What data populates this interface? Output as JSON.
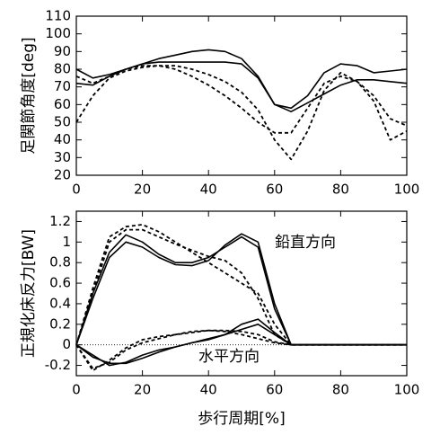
{
  "chart_data": [
    {
      "type": "line",
      "ylabel": "足関節角度[deg]",
      "x": [
        0,
        5,
        10,
        15,
        20,
        25,
        30,
        35,
        40,
        45,
        50,
        55,
        60,
        65,
        70,
        75,
        80,
        85,
        90,
        95,
        100
      ],
      "xlim": [
        0,
        100
      ],
      "xticks": [
        0,
        20,
        40,
        60,
        80,
        100
      ],
      "ylim": [
        20,
        110
      ],
      "yticks": [
        20,
        30,
        40,
        50,
        60,
        70,
        80,
        90,
        100,
        110
      ],
      "series": [
        {
          "color": "#000000",
          "dash": false,
          "values": [
            80,
            75,
            77,
            80,
            83,
            84,
            84,
            84,
            84,
            84,
            83,
            75,
            60,
            58,
            65,
            78,
            83,
            82,
            78,
            79,
            80
          ]
        },
        {
          "color": "#000000",
          "dash": false,
          "values": [
            72,
            71,
            76,
            80,
            83,
            86,
            88,
            90,
            91,
            90,
            86,
            76,
            60,
            56,
            61,
            66,
            71,
            74,
            74,
            73,
            72
          ]
        },
        {
          "color": "#000000",
          "dash": true,
          "values": [
            50,
            65,
            75,
            79,
            81,
            82,
            82,
            80,
            77,
            73,
            67,
            57,
            40,
            29,
            45,
            68,
            78,
            73,
            62,
            40,
            45
          ]
        },
        {
          "color": "#000000",
          "dash": true,
          "values": [
            76,
            72,
            76,
            80,
            82,
            82,
            80,
            76,
            71,
            65,
            58,
            50,
            44,
            44,
            58,
            72,
            76,
            73,
            65,
            52,
            48
          ]
        }
      ]
    },
    {
      "type": "line",
      "ylabel": "正規化床反力[BW]",
      "xlabel": "歩行周期[%]",
      "annotations": [
        "鉛直方向",
        "水平方向"
      ],
      "zero_line": true,
      "x": [
        0,
        5,
        10,
        15,
        20,
        25,
        30,
        35,
        40,
        45,
        50,
        55,
        60,
        65,
        70,
        75,
        80,
        85,
        90,
        95,
        100
      ],
      "xlim": [
        0,
        100
      ],
      "xticks": [
        0,
        20,
        40,
        60,
        80,
        100
      ],
      "ylim": [
        -0.3,
        1.3
      ],
      "yticks": [
        -0.2,
        0,
        0.2,
        0.4,
        0.6,
        0.8,
        1,
        1.2
      ],
      "series": [
        {
          "color": "#000000",
          "dash": false,
          "values": [
            0,
            0.45,
            0.85,
            1.0,
            0.95,
            0.85,
            0.78,
            0.77,
            0.82,
            0.97,
            1.08,
            1.0,
            0.4,
            0,
            0,
            0,
            0,
            0,
            0,
            0,
            0
          ]
        },
        {
          "color": "#000000",
          "dash": false,
          "values": [
            0,
            0.5,
            0.9,
            1.07,
            1.0,
            0.88,
            0.8,
            0.8,
            0.85,
            0.95,
            1.05,
            0.95,
            0.35,
            0,
            0,
            0,
            0,
            0,
            0,
            0,
            0
          ]
        },
        {
          "color": "#000000",
          "dash": true,
          "values": [
            0,
            0.55,
            1.05,
            1.15,
            1.17,
            1.1,
            1.0,
            0.9,
            0.8,
            0.7,
            0.6,
            0.5,
            0.2,
            0,
            0,
            0,
            0,
            0,
            0,
            0,
            0
          ]
        },
        {
          "color": "#000000",
          "dash": true,
          "values": [
            0,
            0.5,
            1.0,
            1.12,
            1.12,
            1.05,
            0.98,
            0.92,
            0.86,
            0.82,
            0.7,
            0.45,
            0.1,
            0,
            0,
            0,
            0,
            0,
            0,
            0,
            0
          ]
        },
        {
          "color": "#000000",
          "dash": false,
          "values": [
            0,
            -0.12,
            -0.18,
            -0.18,
            -0.13,
            -0.07,
            -0.02,
            0.02,
            0.05,
            0.1,
            0.2,
            0.25,
            0.12,
            0,
            0,
            0,
            0,
            0,
            0,
            0,
            0
          ]
        },
        {
          "color": "#000000",
          "dash": false,
          "values": [
            0,
            -0.1,
            -0.2,
            -0.17,
            -0.1,
            -0.05,
            -0.02,
            0.02,
            0.06,
            0.1,
            0.15,
            0.2,
            0.1,
            0,
            0,
            0,
            0,
            0,
            0,
            0,
            0
          ]
        },
        {
          "color": "#000000",
          "dash": true,
          "values": [
            0,
            -0.23,
            -0.17,
            -0.05,
            0.02,
            0.06,
            0.1,
            0.13,
            0.14,
            0.14,
            0.13,
            0.1,
            0.03,
            0,
            0,
            0,
            0,
            0,
            0,
            0,
            0
          ]
        },
        {
          "color": "#000000",
          "dash": true,
          "values": [
            0,
            -0.25,
            -0.15,
            -0.03,
            0.05,
            0.08,
            0.1,
            0.12,
            0.14,
            0.13,
            0.1,
            0.06,
            0.02,
            0,
            0,
            0,
            0,
            0,
            0,
            0,
            0
          ]
        }
      ]
    }
  ]
}
